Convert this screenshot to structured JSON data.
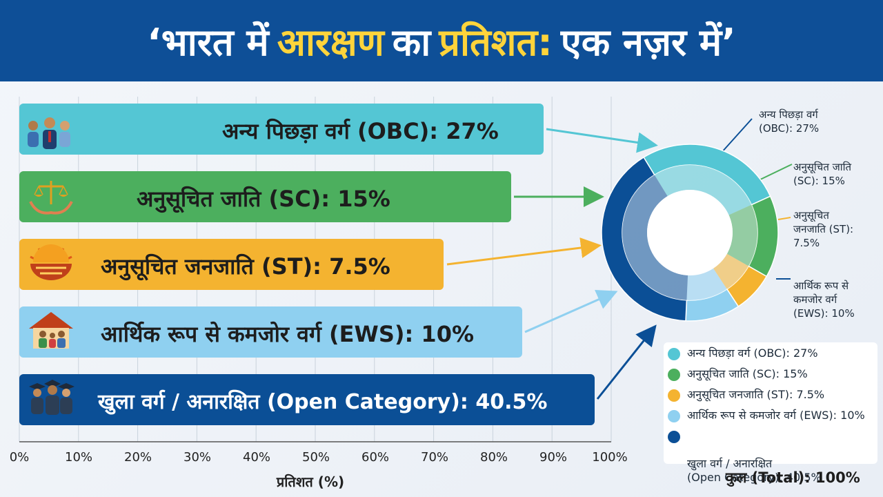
{
  "title": {
    "part1": "‘भारत में",
    "part2": "आरक्षण",
    "part3": "का",
    "part4": "प्रतिशत:",
    "part5": "एक नज़र में’"
  },
  "colors": {
    "obc": "#54c6d4",
    "sc": "#4caf5e",
    "st": "#f4b330",
    "ews": "#8fd0f0",
    "open": "#0b4f96",
    "header": "#0e4f97",
    "title_accent": "#ffd43b"
  },
  "chart_data": {
    "type": "bar",
    "orientation": "horizontal",
    "categories": [
      "अन्य पिछड़ा वर्ग (OBC)",
      "अनुसूचित जाति (SC)",
      "अनुसूचित जनजाति (ST)",
      "आर्थिक रूप से कमजोर वर्ग (EWS)",
      "खुला वर्ग / अनारक्षित (Open Category)"
    ],
    "values": [
      27,
      15,
      7.5,
      10,
      40.5
    ],
    "bar_labels": [
      "अन्य पिछड़ा वर्ग (OBC): 27%",
      "अनुसूचित जाति (SC): 15%",
      "अनुसूचित जनजाति (ST): 7.5%",
      "आर्थिक रूप से कमजोर वर्ग (EWS): 10%",
      "खुला वर्ग / अनारक्षित (Open Category): 40.5%"
    ],
    "bar_lengths": [
      88,
      82,
      74,
      87,
      100
    ],
    "xlabel": "प्रतिशत (%)",
    "ylabel": "",
    "xlim": [
      0,
      100
    ],
    "xticks": [
      "0%",
      "10%",
      "20%",
      "30%",
      "40%",
      "50%",
      "60%",
      "70%",
      "80%",
      "90%",
      "100%"
    ],
    "grid": true,
    "donut": {
      "type": "pie",
      "values": [
        27,
        15,
        7.5,
        10,
        40.5
      ],
      "annotations": [
        "अन्य पिछड़ा वर्ग\n(OBC): 27%",
        "अनुसूचित जाति\n(SC): 15%",
        "अनुसूचित\nजनजाति (ST):\n7.5%",
        "आर्थिक रूप से\nकमजोर वर्ग\n(EWS): 10%"
      ]
    },
    "legend": {
      "placement": "bottom-right",
      "items": [
        "अन्य पिछड़ा वर्ग (OBC): 27%",
        "अनुसूचित जाति (SC): 15%",
        "अनुसूचित जनजाति (ST): 7.5%",
        "आर्थिक रूप से कमजोर वर्ग (EWS): 10%",
        "खुला वर्ग / अनारक्षित\n(Open Category): 40.5%"
      ]
    },
    "total": "कुल (Total): 100%"
  },
  "icons": [
    "people-group-icon",
    "justice-scales-icon",
    "sun-tribal-icon",
    "house-family-icon",
    "graduates-icon"
  ]
}
